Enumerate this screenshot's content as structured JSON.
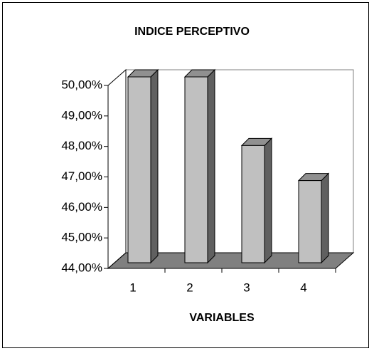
{
  "chart_data": {
    "type": "bar3d",
    "title": "INDICE PERCEPTIVO",
    "xlabel": "VARIABLES",
    "categories": [
      "1",
      "2",
      "3",
      "4"
    ],
    "values": [
      50,
      50,
      47.75,
      46.6
    ],
    "color": "#c0c0c0",
    "ylim": [
      44,
      50
    ],
    "yticks": [
      {
        "value": 44,
        "label": "44,00%"
      },
      {
        "value": 45,
        "label": "45,00%"
      },
      {
        "value": 46,
        "label": "46,00%"
      },
      {
        "value": 47,
        "label": "47,00%"
      },
      {
        "value": 48,
        "label": "48,00%"
      },
      {
        "value": 49,
        "label": "49,00%"
      },
      {
        "value": 50,
        "label": "50,00%"
      }
    ]
  }
}
